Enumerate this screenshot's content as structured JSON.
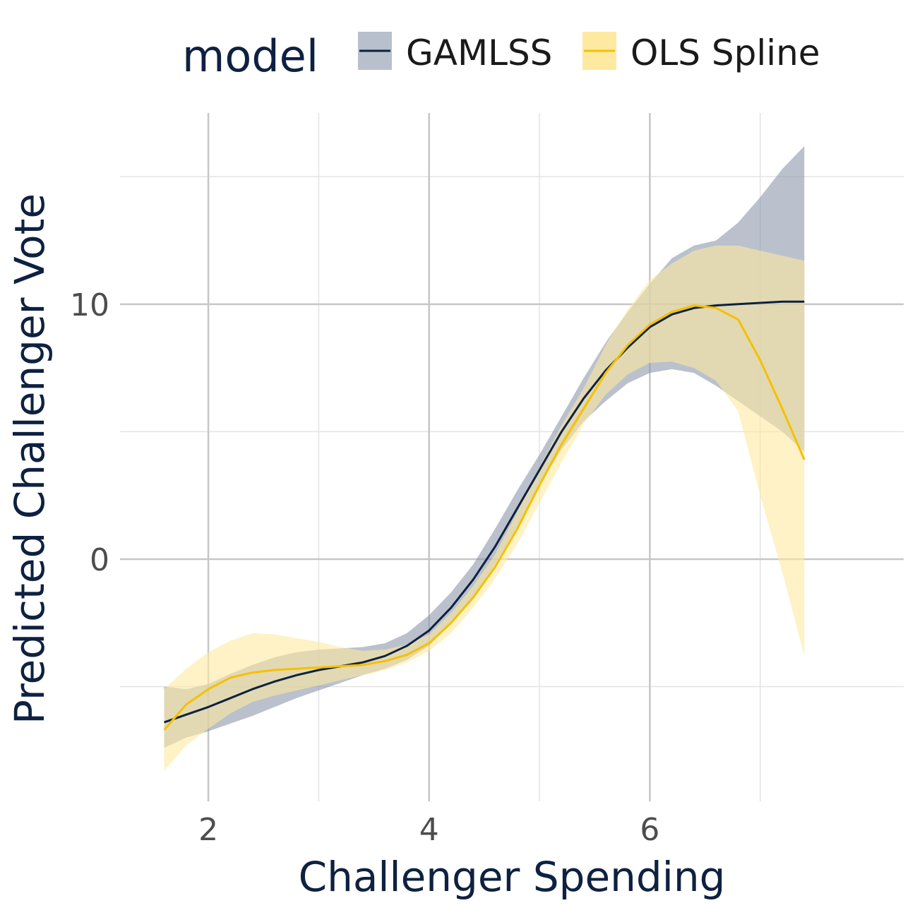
{
  "chart_data": {
    "type": "line",
    "xlabel": "Challenger Spending",
    "ylabel": "Predicted Challenger Vote",
    "xlim": [
      1.2,
      8.3
    ],
    "ylim": [
      -9.5,
      17.5
    ],
    "x_ticks": [
      2,
      4,
      6
    ],
    "y_ticks": [
      0,
      10
    ],
    "x_minor_ticks": [
      3,
      5,
      7
    ],
    "y_minor_ticks": [
      -5,
      5,
      15
    ],
    "grid": true,
    "legend": {
      "title": "model",
      "position": "top"
    },
    "series": [
      {
        "name": "GAMLSS",
        "line_color": "#0e2141",
        "fill_color": "#8c98ab",
        "x": [
          1.6,
          1.8,
          2.0,
          2.2,
          2.4,
          2.6,
          2.8,
          3.0,
          3.2,
          3.4,
          3.6,
          3.8,
          4.0,
          4.2,
          4.4,
          4.6,
          4.8,
          5.0,
          5.2,
          5.4,
          5.6,
          5.8,
          6.0,
          6.2,
          6.4,
          6.6,
          6.8,
          7.0,
          7.2,
          7.4
        ],
        "y": [
          -6.4,
          -6.1,
          -5.8,
          -5.45,
          -5.1,
          -4.8,
          -4.55,
          -4.35,
          -4.2,
          -4.05,
          -3.8,
          -3.4,
          -2.8,
          -1.9,
          -0.8,
          0.5,
          2.0,
          3.5,
          5.0,
          6.3,
          7.4,
          8.3,
          9.1,
          9.6,
          9.85,
          9.95,
          10.0,
          10.05,
          10.1,
          10.1
        ],
        "lower": [
          -7.4,
          -7.0,
          -6.75,
          -6.45,
          -6.15,
          -5.8,
          -5.45,
          -5.15,
          -4.85,
          -4.55,
          -4.3,
          -3.95,
          -3.4,
          -2.5,
          -1.5,
          -0.2,
          1.3,
          2.9,
          4.3,
          5.4,
          6.2,
          6.9,
          7.3,
          7.45,
          7.3,
          6.8,
          6.2,
          5.6,
          5.0,
          4.2
        ],
        "upper": [
          -5.0,
          -5.1,
          -4.9,
          -4.5,
          -4.15,
          -3.85,
          -3.65,
          -3.55,
          -3.5,
          -3.45,
          -3.3,
          -2.9,
          -2.2,
          -1.3,
          -0.2,
          1.2,
          2.7,
          4.1,
          5.6,
          7.1,
          8.5,
          9.7,
          10.8,
          11.8,
          12.3,
          12.5,
          13.2,
          14.2,
          15.3,
          16.2
        ]
      },
      {
        "name": "OLS Spline",
        "line_color": "#f5c000",
        "fill_color": "#fde9a0",
        "x": [
          1.6,
          1.8,
          2.0,
          2.2,
          2.4,
          2.6,
          2.8,
          3.0,
          3.2,
          3.4,
          3.6,
          3.8,
          4.0,
          4.2,
          4.4,
          4.6,
          4.8,
          5.0,
          5.2,
          5.4,
          5.6,
          5.8,
          6.0,
          6.2,
          6.4,
          6.6,
          6.8,
          7.0,
          7.2,
          7.4
        ],
        "y": [
          -6.7,
          -5.7,
          -5.1,
          -4.65,
          -4.45,
          -4.35,
          -4.3,
          -4.25,
          -4.2,
          -4.15,
          -4.0,
          -3.75,
          -3.3,
          -2.5,
          -1.5,
          -0.3,
          1.2,
          2.9,
          4.5,
          5.9,
          7.3,
          8.4,
          9.2,
          9.7,
          9.95,
          9.85,
          9.4,
          7.8,
          5.9,
          3.9
        ],
        "lower": [
          -8.3,
          -7.3,
          -6.65,
          -6.05,
          -5.6,
          -5.35,
          -5.15,
          -4.95,
          -4.75,
          -4.55,
          -4.35,
          -4.05,
          -3.6,
          -2.9,
          -1.9,
          -0.75,
          0.6,
          2.2,
          3.8,
          5.3,
          6.45,
          7.25,
          7.7,
          7.75,
          7.5,
          7.0,
          5.8,
          2.5,
          -0.5,
          -3.8
        ],
        "upper": [
          -5.1,
          -4.3,
          -3.65,
          -3.2,
          -2.9,
          -2.95,
          -3.1,
          -3.25,
          -3.45,
          -3.6,
          -3.55,
          -3.35,
          -2.95,
          -2.1,
          -1.05,
          0.2,
          1.85,
          3.6,
          5.25,
          6.7,
          8.4,
          9.8,
          10.95,
          11.6,
          12.1,
          12.3,
          12.3,
          12.1,
          11.9,
          11.7
        ]
      }
    ]
  }
}
